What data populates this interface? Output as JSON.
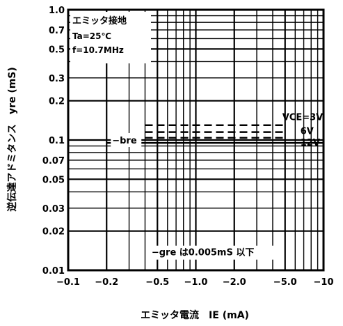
{
  "chart_data": {
    "type": "line",
    "title": "",
    "xlabel": "エミッタ電流　IE (mA)",
    "ylabel": "逆伝達アドミタンス　yre (mS)",
    "x_scale": "log",
    "y_scale": "log",
    "xlim": [
      -0.1,
      -10
    ],
    "ylim": [
      0.01,
      1.0
    ],
    "grid": true,
    "x_ticks": [
      "−0.1",
      "−0.2",
      "−0.5",
      "−1.0",
      "−2.0",
      "−5.0",
      "−10"
    ],
    "x_tick_values": [
      -0.1,
      -0.2,
      -0.5,
      -1.0,
      -2.0,
      -5.0,
      -10
    ],
    "y_ticks": [
      "1.0",
      "0.7",
      "0.5",
      "0.3",
      "0.2",
      "0.1",
      "0.07",
      "0.05",
      "0.03",
      "0.02",
      "0.01"
    ],
    "y_tick_values": [
      1.0,
      0.7,
      0.5,
      0.3,
      0.2,
      0.1,
      0.07,
      0.05,
      0.03,
      0.02,
      0.01
    ],
    "conditions": [
      "エミッタ接地",
      "Ta=25℃",
      "f=10.7MHz"
    ],
    "curve_label": "−bre",
    "series": [
      {
        "name": "VCE=3V",
        "x": [
          -0.4,
          -5.0
        ],
        "y": [
          0.13,
          0.13
        ]
      },
      {
        "name": "6V",
        "x": [
          -0.4,
          -5.0
        ],
        "y": [
          0.115,
          0.115
        ]
      },
      {
        "name": "12V",
        "x": [
          -0.4,
          -5.0
        ],
        "y": [
          0.104,
          0.104
        ]
      }
    ],
    "solid_line": {
      "x": [
        -0.2,
        -10
      ],
      "y": [
        0.095,
        0.095
      ]
    },
    "note": "−gre は0.005mS 以下"
  }
}
